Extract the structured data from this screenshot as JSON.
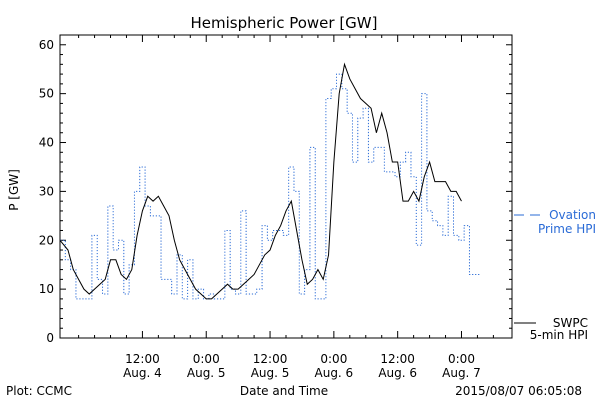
{
  "chart_data": {
    "type": "line",
    "title": "Hemispheric Power [GW]",
    "ylabel": "P [GW]",
    "xlabel": "Date and Time",
    "ylim": [
      0,
      62
    ],
    "xlim_hours": [
      -3.5,
      81.5
    ],
    "grid": false,
    "yticks": [
      0,
      10,
      20,
      30,
      40,
      50,
      60
    ],
    "xticks": [
      {
        "h": 12,
        "time": "12:00",
        "date": "Aug. 4"
      },
      {
        "h": 24,
        "time": "0:00",
        "date": "Aug. 5"
      },
      {
        "h": 36,
        "time": "12:00",
        "date": "Aug. 5"
      },
      {
        "h": 48,
        "time": "0:00",
        "date": "Aug. 6"
      },
      {
        "h": 60,
        "time": "12:00",
        "date": "Aug. 6"
      },
      {
        "h": 72,
        "time": "0:00",
        "date": "Aug. 7"
      }
    ],
    "legend_placement": "right",
    "series": [
      {
        "name": "Ovation Prime HPI",
        "style": "dotted-step",
        "color": "#2a6bd6",
        "points": [
          [
            -3.5,
            20
          ],
          [
            -2.5,
            16
          ],
          [
            -1.5,
            14
          ],
          [
            -0.5,
            8
          ],
          [
            0.5,
            8
          ],
          [
            1.5,
            8
          ],
          [
            2.5,
            21
          ],
          [
            3.5,
            12
          ],
          [
            4.5,
            9
          ],
          [
            5.5,
            27
          ],
          [
            6.5,
            18
          ],
          [
            7.5,
            20
          ],
          [
            8.5,
            9
          ],
          [
            9.5,
            15
          ],
          [
            10.5,
            30
          ],
          [
            11.5,
            35
          ],
          [
            12.5,
            27
          ],
          [
            13.5,
            25
          ],
          [
            14.5,
            25
          ],
          [
            15.5,
            12
          ],
          [
            16.5,
            12
          ],
          [
            17.5,
            9
          ],
          [
            18.5,
            17
          ],
          [
            19.5,
            8
          ],
          [
            20.5,
            16
          ],
          [
            21.5,
            8
          ],
          [
            22.5,
            10
          ],
          [
            23.5,
            8
          ],
          [
            24.5,
            9
          ],
          [
            25.5,
            8
          ],
          [
            26.5,
            8
          ],
          [
            27.5,
            22
          ],
          [
            28.5,
            10
          ],
          [
            29.5,
            9
          ],
          [
            30.5,
            26
          ],
          [
            31.5,
            9
          ],
          [
            32.5,
            9
          ],
          [
            33.5,
            10
          ],
          [
            34.5,
            23
          ],
          [
            35.5,
            20
          ],
          [
            36.5,
            22
          ],
          [
            37.5,
            22
          ],
          [
            38.5,
            21
          ],
          [
            39.5,
            35
          ],
          [
            40.5,
            30
          ],
          [
            41.5,
            9
          ],
          [
            42.5,
            14
          ],
          [
            43.5,
            39
          ],
          [
            44.5,
            8
          ],
          [
            45.5,
            8
          ],
          [
            46.5,
            49
          ],
          [
            47.5,
            51
          ],
          [
            48.5,
            54
          ],
          [
            49.5,
            51
          ],
          [
            50.5,
            46
          ],
          [
            51.5,
            36
          ],
          [
            52.5,
            45
          ],
          [
            53.5,
            47
          ],
          [
            54.5,
            36
          ],
          [
            55.5,
            39
          ],
          [
            56.5,
            39
          ],
          [
            57.5,
            34
          ],
          [
            58.5,
            34
          ],
          [
            59.5,
            33
          ],
          [
            60.5,
            36
          ],
          [
            61.5,
            38
          ],
          [
            62.5,
            33
          ],
          [
            63.5,
            19
          ],
          [
            64.5,
            50
          ],
          [
            65.5,
            26
          ],
          [
            66.5,
            24
          ],
          [
            67.5,
            23
          ],
          [
            68.5,
            21
          ],
          [
            69.5,
            29
          ],
          [
            70.5,
            21
          ],
          [
            71.5,
            20
          ],
          [
            72.5,
            23
          ],
          [
            73.5,
            13
          ],
          [
            74.5,
            13
          ]
        ]
      },
      {
        "name": "SWPC 5-min HPI",
        "style": "solid",
        "color": "#000000",
        "points": [
          [
            -3.5,
            20
          ],
          [
            -2,
            18
          ],
          [
            -1,
            14
          ],
          [
            0,
            12
          ],
          [
            1,
            10
          ],
          [
            2,
            9
          ],
          [
            3,
            10
          ],
          [
            4,
            11
          ],
          [
            5,
            12
          ],
          [
            6,
            16
          ],
          [
            7,
            16
          ],
          [
            8,
            13
          ],
          [
            9,
            12
          ],
          [
            10,
            14
          ],
          [
            11,
            21
          ],
          [
            12,
            26
          ],
          [
            13,
            29
          ],
          [
            14,
            28
          ],
          [
            15,
            29
          ],
          [
            16,
            27
          ],
          [
            17,
            25
          ],
          [
            18,
            20
          ],
          [
            19,
            16
          ],
          [
            20,
            14
          ],
          [
            21,
            12
          ],
          [
            22,
            10
          ],
          [
            23,
            9
          ],
          [
            24,
            8
          ],
          [
            25,
            8
          ],
          [
            26,
            9
          ],
          [
            27,
            10
          ],
          [
            28,
            11
          ],
          [
            29,
            10
          ],
          [
            30,
            10
          ],
          [
            31,
            11
          ],
          [
            32,
            12
          ],
          [
            33,
            13
          ],
          [
            34,
            15
          ],
          [
            35,
            17
          ],
          [
            36,
            18
          ],
          [
            37,
            21
          ],
          [
            38,
            23
          ],
          [
            39,
            26
          ],
          [
            40,
            28
          ],
          [
            41,
            22
          ],
          [
            42,
            16
          ],
          [
            43,
            11
          ],
          [
            44,
            12
          ],
          [
            45,
            14
          ],
          [
            46,
            12
          ],
          [
            47,
            17
          ],
          [
            48,
            36
          ],
          [
            49,
            50
          ],
          [
            50,
            56
          ],
          [
            51,
            53
          ],
          [
            52,
            51
          ],
          [
            53,
            49
          ],
          [
            54,
            48
          ],
          [
            55,
            47
          ],
          [
            56,
            42
          ],
          [
            57,
            46
          ],
          [
            58,
            42
          ],
          [
            59,
            36
          ],
          [
            60,
            36
          ],
          [
            61,
            28
          ],
          [
            62,
            28
          ],
          [
            63,
            30
          ],
          [
            64,
            28
          ],
          [
            65,
            33
          ],
          [
            66,
            36
          ],
          [
            67,
            32
          ],
          [
            68,
            32
          ],
          [
            69,
            32
          ],
          [
            70,
            30
          ],
          [
            71,
            30
          ],
          [
            71.5,
            29
          ],
          [
            72,
            28
          ]
        ]
      }
    ],
    "legend": [
      {
        "series": "Ovation Prime HPI",
        "line1": "Ovation",
        "line2": "Prime HPI"
      },
      {
        "series": "SWPC 5-min HPI",
        "line1": "SWPC",
        "line2": "5-min HPI"
      }
    ]
  },
  "footer": {
    "left": "Plot: CCMC",
    "right": "2015/08/07 06:05:08"
  }
}
